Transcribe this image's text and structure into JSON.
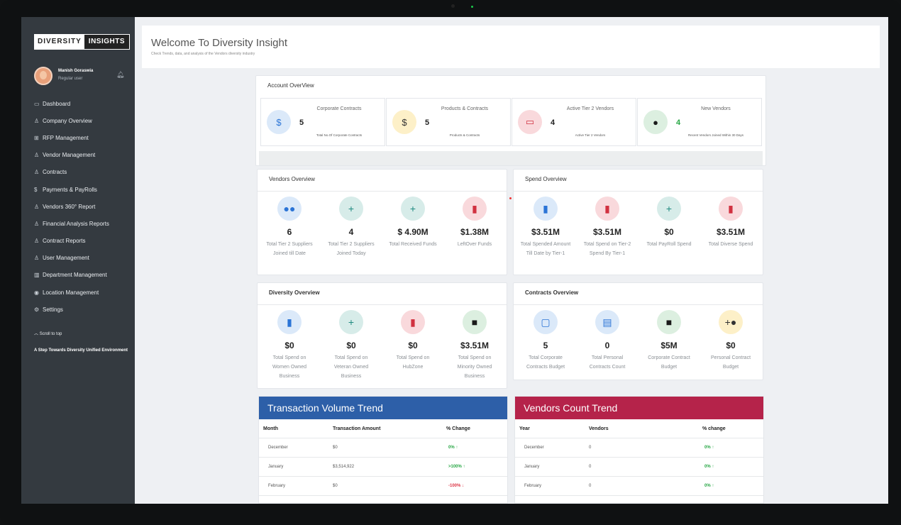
{
  "sidebar": {
    "logo_left": "DIVERSITY",
    "logo_right": "INSIGHTS",
    "user_name": "Manish Goraswia",
    "user_role": "Regular user",
    "items": [
      {
        "label": "Dashboard",
        "icon": "monitor-icon"
      },
      {
        "label": "Company Overview",
        "icon": "user-icon"
      },
      {
        "label": "RFP Management",
        "icon": "sitemap-icon"
      },
      {
        "label": "Vendor Management",
        "icon": "users-icon"
      },
      {
        "label": "Contracts",
        "icon": "user-icon"
      },
      {
        "label": "Payments & PayRolls",
        "icon": "dollar-icon"
      },
      {
        "label": "Vendors 360° Report",
        "icon": "user-icon"
      },
      {
        "label": "Financial Analysis Reports",
        "icon": "user-icon"
      },
      {
        "label": "Contract Reports",
        "icon": "user-icon"
      },
      {
        "label": "User Management",
        "icon": "user-icon"
      },
      {
        "label": "Department Management",
        "icon": "building-icon"
      },
      {
        "label": "Location Management",
        "icon": "pin-icon"
      },
      {
        "label": "Settings",
        "icon": "gear-icon"
      }
    ],
    "scroll_label": "Scroll to top",
    "tagline": "A Step Towards Diversity Unified Environment"
  },
  "header": {
    "title": "Welcome To Diversity Insight",
    "subtitle": "Check Trends, data, and analysis of the Vendors diversity industry"
  },
  "account": {
    "title": "Account OverView",
    "boxes": [
      {
        "label": "Corporate Contracts",
        "value": "5",
        "sub": "Total No.Of Corporate Contracts",
        "icon": "money-hand-icon",
        "color": "blue",
        "glyph": "$"
      },
      {
        "label": "Products & Contracts",
        "value": "5",
        "sub": "Products & Contracts",
        "icon": "money-hand-icon",
        "color": "yellow",
        "glyph": "$"
      },
      {
        "label": "Active Tier 2 Vendors",
        "value": "4",
        "sub": "Active Tier 2 Vendors",
        "icon": "money-bill-icon",
        "color": "red",
        "glyph": "▭"
      },
      {
        "label": "New Vendors",
        "value": "4",
        "sub": "Recent Vendors Joined Within 30 Days",
        "icon": "user-icon",
        "color": "green",
        "glyph": "●"
      }
    ]
  },
  "vendors": {
    "title": "Vendors Overview",
    "stats": [
      {
        "value": "6",
        "label": "Total Tier 2 Suppliers Joined till Date",
        "icon": "users-icon",
        "color": "blue",
        "glyph": "●●"
      },
      {
        "value": "4",
        "label": "Total Tier 2 Suppliers Joined Today",
        "icon": "user-plus-icon",
        "color": "teal",
        "glyph": "+"
      },
      {
        "value": "$ 4.90M",
        "label": "Total Received Funds",
        "icon": "user-plus-icon",
        "color": "teal",
        "glyph": "+"
      },
      {
        "value": "$1.38M",
        "label": "LeftOver Funds",
        "icon": "file-icon",
        "color": "red",
        "glyph": "▮"
      }
    ]
  },
  "spend": {
    "title": "Spend Overview",
    "stats": [
      {
        "value": "$3.51M",
        "label": "Total Spended Amount Till Date by Tier-1",
        "icon": "bar-chart-icon",
        "color": "blue",
        "glyph": "▮"
      },
      {
        "value": "$3.51M",
        "label": "Total Spend on Tier-2 Spend By Tier-1",
        "icon": "file-icon",
        "color": "red",
        "glyph": "▮"
      },
      {
        "value": "$0",
        "label": "Total PayRoll Spend",
        "icon": "user-plus-icon",
        "color": "teal",
        "glyph": "+"
      },
      {
        "value": "$3.51M",
        "label": "Total Diverse Spend",
        "icon": "file-icon",
        "color": "red",
        "glyph": "▮"
      }
    ]
  },
  "diversity": {
    "title": "Diversity Overview",
    "stats": [
      {
        "value": "$0",
        "label": "Total Spend on Women Owned Business",
        "icon": "bar-chart-icon",
        "color": "blue",
        "glyph": "▮"
      },
      {
        "value": "$0",
        "label": "Total Spend on Veteran Owned Business",
        "icon": "user-plus-icon",
        "color": "teal",
        "glyph": "+"
      },
      {
        "value": "$0",
        "label": "Total Spend on HubZone",
        "icon": "file-icon",
        "color": "red",
        "glyph": "▮"
      },
      {
        "value": "$3.51M",
        "label": "Total Spend on Minority Owned Business",
        "icon": "briefcase-icon",
        "color": "green",
        "glyph": "■"
      }
    ]
  },
  "contracts": {
    "title": "Contracts Overview",
    "stats": [
      {
        "value": "5",
        "label": "Total Corporate Contracts Budget",
        "icon": "calendar-icon",
        "color": "blue",
        "glyph": "▢"
      },
      {
        "value": "0",
        "label": "Total Personal Contracts Count",
        "icon": "document-icon",
        "color": "blue",
        "glyph": "▤"
      },
      {
        "value": "$5M",
        "label": "Corporate Contract Budget",
        "icon": "briefcase-icon",
        "color": "green",
        "glyph": "■"
      },
      {
        "value": "$0",
        "label": "Personal Contract Budget",
        "icon": "user-plus-icon",
        "color": "yellow",
        "glyph": "+●"
      }
    ]
  },
  "transaction_trend": {
    "title": "Transaction Volume Trend",
    "header_color": "#2d5fa8",
    "columns": [
      "Month",
      "Transaction Amount",
      "% Change"
    ],
    "rows": [
      {
        "c1": "December",
        "c2": "$0",
        "c3": "0% ↑",
        "trend": "pos"
      },
      {
        "c1": "January",
        "c2": "$3,514,922",
        "c3": ">100% ↑",
        "trend": "pos"
      },
      {
        "c1": "February",
        "c2": "$0",
        "c3": "-100% ↓",
        "trend": "neg"
      }
    ]
  },
  "vendors_trend": {
    "title": "Vendors Count Trend",
    "header_color": "#b5234a",
    "columns": [
      "Year",
      "Vendors",
      "% change"
    ],
    "rows": [
      {
        "c1": "December",
        "c2": "0",
        "c3": "0% ↑",
        "trend": "pos"
      },
      {
        "c1": "January",
        "c2": "0",
        "c3": "0% ↑",
        "trend": "pos"
      },
      {
        "c1": "February",
        "c2": "0",
        "c3": "0% ↑",
        "trend": "pos"
      }
    ]
  }
}
